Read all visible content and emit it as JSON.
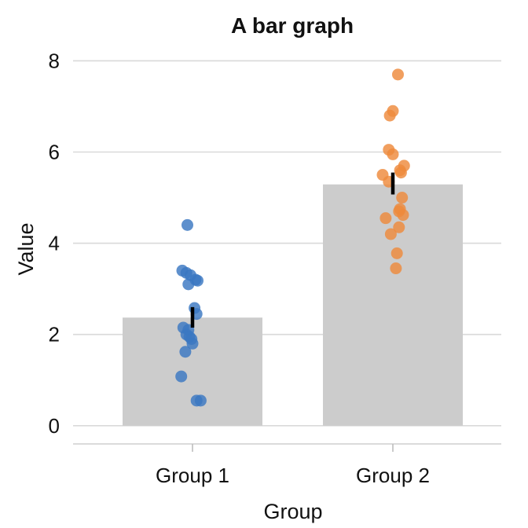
{
  "chart_data": {
    "type": "bar",
    "title": "A bar graph",
    "xlabel": "Group",
    "ylabel": "Value",
    "categories": [
      "Group 1",
      "Group 2"
    ],
    "values": [
      2.37,
      5.29
    ],
    "error_bars": [
      {
        "low": 2.15,
        "high": 2.6
      },
      {
        "low": 5.07,
        "high": 5.55
      }
    ],
    "ylim": [
      -0.4,
      8.3
    ],
    "yticks": [
      "0",
      "2",
      "4",
      "6",
      "8"
    ],
    "ytick_values": [
      0,
      2,
      4,
      6,
      8
    ],
    "grid": "horizontal",
    "bar_color": "#cccccc",
    "points": [
      {
        "category": "Group 1",
        "color": "#3a78c2",
        "y": [
          4.4,
          3.4,
          3.35,
          3.3,
          3.2,
          3.18,
          3.1,
          2.58,
          2.45,
          2.15,
          2.1,
          2.0,
          1.95,
          1.9,
          1.8,
          1.62,
          1.08,
          0.55,
          0.55
        ],
        "jitter": [
          -0.05,
          -0.1,
          -0.06,
          -0.02,
          0.03,
          0.05,
          -0.04,
          0.02,
          0.04,
          -0.09,
          -0.04,
          -0.06,
          -0.03,
          -0.01,
          0.0,
          -0.07,
          -0.11,
          0.04,
          0.08
        ]
      },
      {
        "category": "Group 2",
        "color": "#ee8a3c",
        "y": [
          7.7,
          6.9,
          6.8,
          6.05,
          5.95,
          5.7,
          5.6,
          5.55,
          5.5,
          5.35,
          5.0,
          4.75,
          4.7,
          4.62,
          4.55,
          4.35,
          4.2,
          3.78,
          3.45
        ],
        "jitter": [
          0.05,
          0.0,
          -0.03,
          -0.04,
          -0.0,
          0.11,
          0.07,
          0.08,
          -0.1,
          -0.04,
          0.09,
          0.07,
          0.06,
          0.1,
          -0.07,
          0.06,
          -0.02,
          0.04,
          0.03
        ]
      }
    ]
  }
}
